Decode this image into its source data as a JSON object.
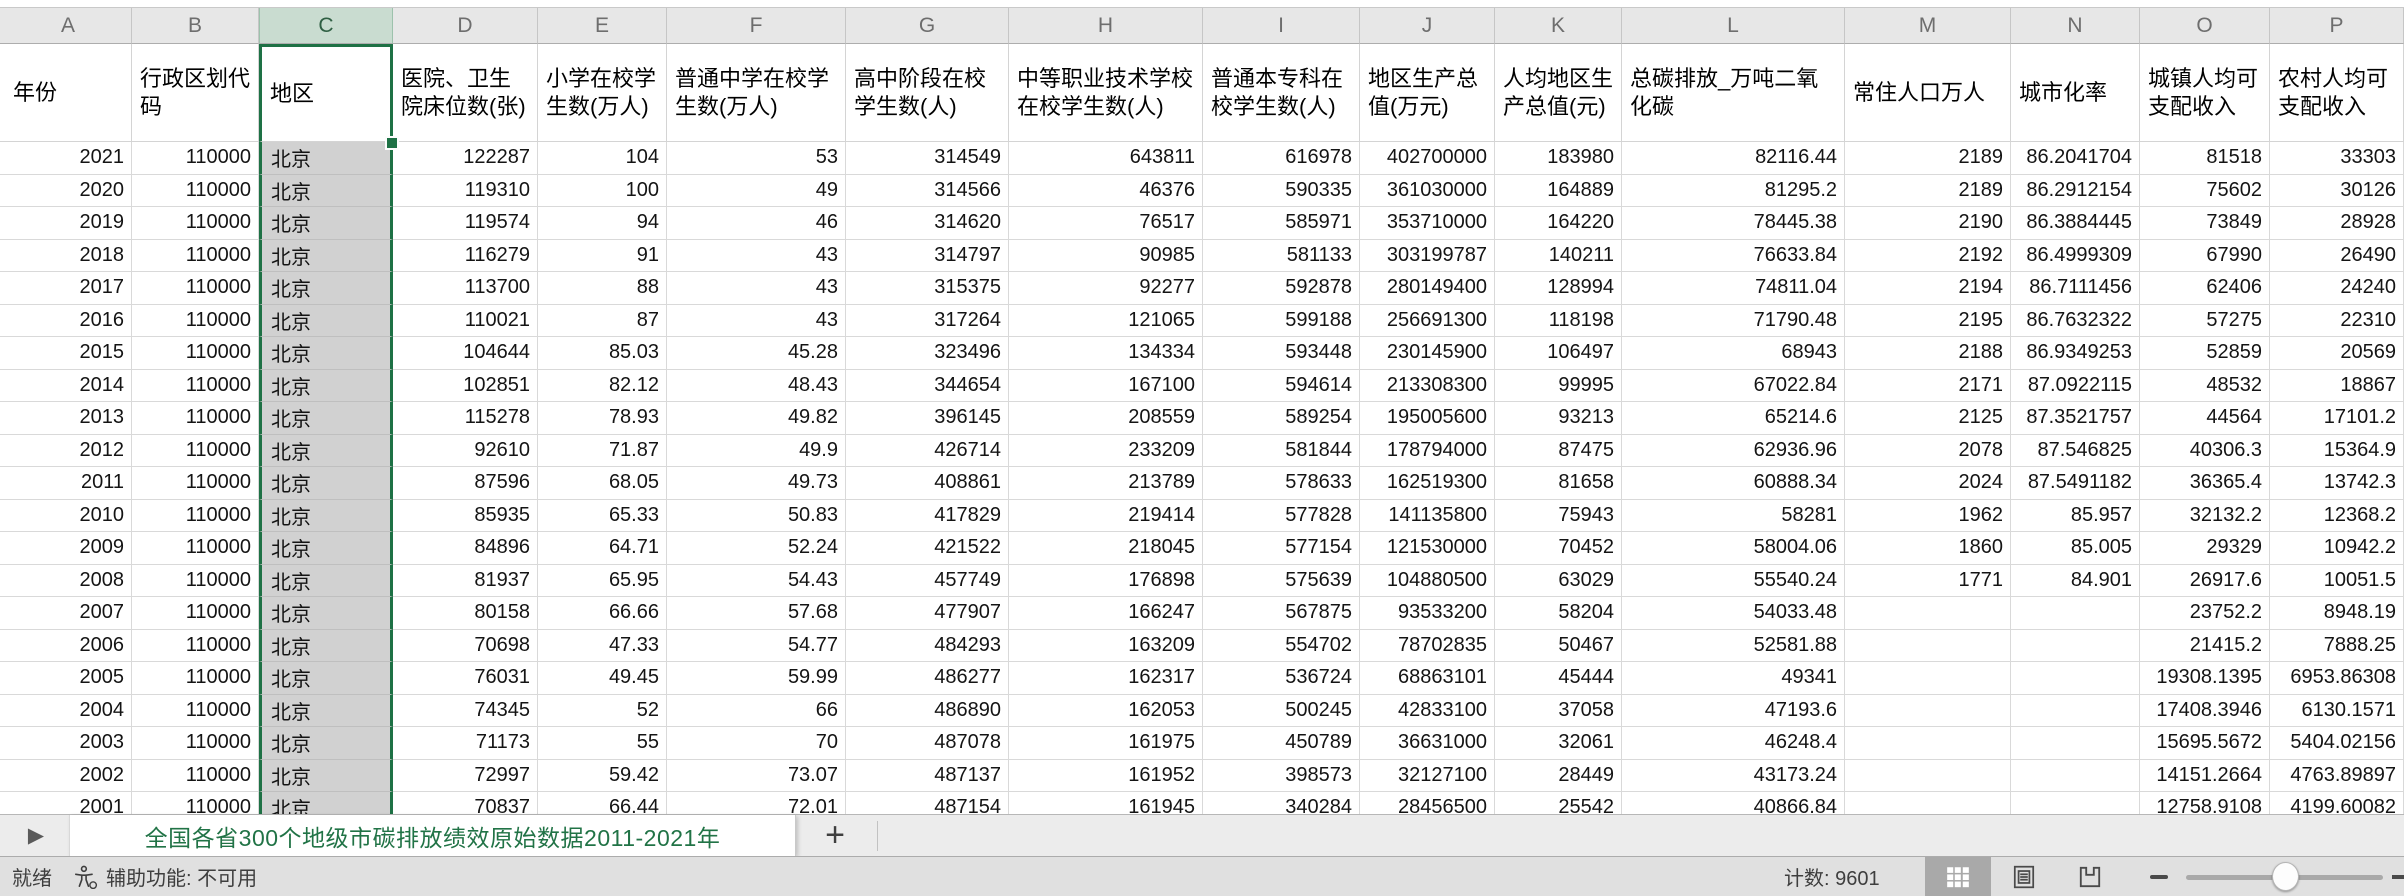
{
  "columns": [
    {
      "letter": "A",
      "label": "年份"
    },
    {
      "letter": "B",
      "label": "行政区划代码"
    },
    {
      "letter": "C",
      "label": "地区",
      "selected": true
    },
    {
      "letter": "D",
      "label": "医院、卫生院床位数(张)"
    },
    {
      "letter": "E",
      "label": "小学在校学生数(万人)"
    },
    {
      "letter": "F",
      "label": "普通中学在校学生数(万人)"
    },
    {
      "letter": "G",
      "label": "高中阶段在校学生数(人)"
    },
    {
      "letter": "H",
      "label": "中等职业技术学校在校学生数(人)"
    },
    {
      "letter": "I",
      "label": "普通本专科在校学生数(人)"
    },
    {
      "letter": "J",
      "label": "地区生产总值(万元)"
    },
    {
      "letter": "K",
      "label": "人均地区生产总值(元)"
    },
    {
      "letter": "L",
      "label": "总碳排放_万吨二氧化碳"
    },
    {
      "letter": "M",
      "label": "常住人口万人"
    },
    {
      "letter": "N",
      "label": "城市化率"
    },
    {
      "letter": "O",
      "label": "城镇人均可支配收入"
    },
    {
      "letter": "P",
      "label": "农村人均可支配收入"
    }
  ],
  "rows": [
    [
      "2021",
      "110000",
      "北京",
      "122287",
      "104",
      "53",
      "314549",
      "643811",
      "616978",
      "402700000",
      "183980",
      "82116.44",
      "2189",
      "86.2041704",
      "81518",
      "33303"
    ],
    [
      "2020",
      "110000",
      "北京",
      "119310",
      "100",
      "49",
      "314566",
      "46376",
      "590335",
      "361030000",
      "164889",
      "81295.2",
      "2189",
      "86.2912154",
      "75602",
      "30126"
    ],
    [
      "2019",
      "110000",
      "北京",
      "119574",
      "94",
      "46",
      "314620",
      "76517",
      "585971",
      "353710000",
      "164220",
      "78445.38",
      "2190",
      "86.3884445",
      "73849",
      "28928"
    ],
    [
      "2018",
      "110000",
      "北京",
      "116279",
      "91",
      "43",
      "314797",
      "90985",
      "581133",
      "303199787",
      "140211",
      "76633.84",
      "2192",
      "86.4999309",
      "67990",
      "26490"
    ],
    [
      "2017",
      "110000",
      "北京",
      "113700",
      "88",
      "43",
      "315375",
      "92277",
      "592878",
      "280149400",
      "128994",
      "74811.04",
      "2194",
      "86.7111456",
      "62406",
      "24240"
    ],
    [
      "2016",
      "110000",
      "北京",
      "110021",
      "87",
      "43",
      "317264",
      "121065",
      "599188",
      "256691300",
      "118198",
      "71790.48",
      "2195",
      "86.7632322",
      "57275",
      "22310"
    ],
    [
      "2015",
      "110000",
      "北京",
      "104644",
      "85.03",
      "45.28",
      "323496",
      "134334",
      "593448",
      "230145900",
      "106497",
      "68943",
      "2188",
      "86.9349253",
      "52859",
      "20569"
    ],
    [
      "2014",
      "110000",
      "北京",
      "102851",
      "82.12",
      "48.43",
      "344654",
      "167100",
      "594614",
      "213308300",
      "99995",
      "67022.84",
      "2171",
      "87.0922115",
      "48532",
      "18867"
    ],
    [
      "2013",
      "110000",
      "北京",
      "115278",
      "78.93",
      "49.82",
      "396145",
      "208559",
      "589254",
      "195005600",
      "93213",
      "65214.6",
      "2125",
      "87.3521757",
      "44564",
      "17101.2"
    ],
    [
      "2012",
      "110000",
      "北京",
      "92610",
      "71.87",
      "49.9",
      "426714",
      "233209",
      "581844",
      "178794000",
      "87475",
      "62936.96",
      "2078",
      "87.546825",
      "40306.3",
      "15364.9"
    ],
    [
      "2011",
      "110000",
      "北京",
      "87596",
      "68.05",
      "49.73",
      "408861",
      "213789",
      "578633",
      "162519300",
      "81658",
      "60888.34",
      "2024",
      "87.5491182",
      "36365.4",
      "13742.3"
    ],
    [
      "2010",
      "110000",
      "北京",
      "85935",
      "65.33",
      "50.83",
      "417829",
      "219414",
      "577828",
      "141135800",
      "75943",
      "58281",
      "1962",
      "85.957",
      "32132.2",
      "12368.2"
    ],
    [
      "2009",
      "110000",
      "北京",
      "84896",
      "64.71",
      "52.24",
      "421522",
      "218045",
      "577154",
      "121530000",
      "70452",
      "58004.06",
      "1860",
      "85.005",
      "29329",
      "10942.2"
    ],
    [
      "2008",
      "110000",
      "北京",
      "81937",
      "65.95",
      "54.43",
      "457749",
      "176898",
      "575639",
      "104880500",
      "63029",
      "55540.24",
      "1771",
      "84.901",
      "26917.6",
      "10051.5"
    ],
    [
      "2007",
      "110000",
      "北京",
      "80158",
      "66.66",
      "57.68",
      "477907",
      "166247",
      "567875",
      "93533200",
      "58204",
      "54033.48",
      "",
      "",
      "23752.2",
      "8948.19"
    ],
    [
      "2006",
      "110000",
      "北京",
      "70698",
      "47.33",
      "54.77",
      "484293",
      "163209",
      "554702",
      "78702835",
      "50467",
      "52581.88",
      "",
      "",
      "21415.2",
      "7888.25"
    ],
    [
      "2005",
      "110000",
      "北京",
      "76031",
      "49.45",
      "59.99",
      "486277",
      "162317",
      "536724",
      "68863101",
      "45444",
      "49341",
      "",
      "",
      "19308.1395",
      "6953.86308"
    ],
    [
      "2004",
      "110000",
      "北京",
      "74345",
      "52",
      "66",
      "486890",
      "162053",
      "500245",
      "42833100",
      "37058",
      "47193.6",
      "",
      "",
      "17408.3946",
      "6130.1571"
    ],
    [
      "2003",
      "110000",
      "北京",
      "71173",
      "55",
      "70",
      "487078",
      "161975",
      "450789",
      "36631000",
      "32061",
      "46248.4",
      "",
      "",
      "15695.5672",
      "5404.02156"
    ],
    [
      "2002",
      "110000",
      "北京",
      "72997",
      "59.42",
      "73.07",
      "487137",
      "161952",
      "398573",
      "32127100",
      "28449",
      "43173.24",
      "",
      "",
      "14151.2664",
      "4763.89897"
    ],
    [
      "2001",
      "110000",
      "北京",
      "70837",
      "66.44",
      "72.01",
      "487154",
      "161945",
      "340284",
      "28456500",
      "25542",
      "40866.84",
      "",
      "",
      "12758.9108",
      "4199.60082"
    ]
  ],
  "sheet_tab": {
    "title": "全国各省300个地级市碳排放绩效原始数据2011-2021年",
    "add_label": "+",
    "nav_arrow": "▶"
  },
  "status_bar": {
    "ready": "就绪",
    "accessibility": "辅助功能: 不可用",
    "count": "计数: 9601"
  },
  "colors": {
    "excel_green": "#217346",
    "selection_border": "#1E7145",
    "selected_column_fill": "#D1D1D1",
    "selected_letter_bg": "#C9DCD0",
    "gridline": "#D9D9D9",
    "letters_bg": "#E7E7E7",
    "statusbar_bg": "#E0E0E0"
  }
}
